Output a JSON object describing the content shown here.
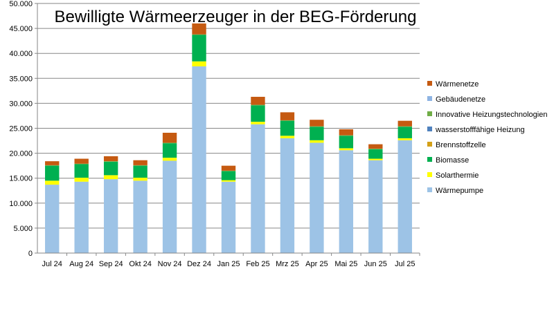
{
  "chart_data": {
    "type": "bar",
    "stacked": true,
    "title": "Bewilligte Wärmeerzeuger in der BEG-Förderung",
    "xlabel": "",
    "ylabel": "",
    "ylim": [
      0,
      50000
    ],
    "ytick_values": [
      0,
      5000,
      10000,
      15000,
      20000,
      25000,
      30000,
      35000,
      40000,
      45000,
      50000
    ],
    "ytick_labels": [
      "0",
      "5.000",
      "10.000",
      "15.000",
      "20.000",
      "25.000",
      "30.000",
      "35.000",
      "40.000",
      "45.000",
      "50.000"
    ],
    "grid": true,
    "legend_position": "right",
    "categories": [
      "Jul 24",
      "Aug 24",
      "Sep 24",
      "Okt 24",
      "Nov 24",
      "Dez 24",
      "Jan 25",
      "Feb 25",
      "Mrz 25",
      "Apr 25",
      "Mai 25",
      "Jun 25",
      "Jul 25"
    ],
    "series": [
      {
        "name": "Wärmepumpe",
        "color": "#9dc3e6",
        "values": [
          13700,
          14300,
          14800,
          14500,
          18500,
          37400,
          14300,
          25800,
          23000,
          22100,
          20600,
          18600,
          22600
        ]
      },
      {
        "name": "Solarthermie",
        "color": "#ffff00",
        "values": [
          800,
          800,
          800,
          600,
          600,
          1000,
          300,
          500,
          500,
          500,
          400,
          300,
          400
        ]
      },
      {
        "name": "Biomasse",
        "color": "#00b050",
        "values": [
          3000,
          2700,
          2700,
          2400,
          2900,
          5300,
          1800,
          3300,
          3000,
          2700,
          2500,
          1900,
          2300
        ]
      },
      {
        "name": "Brennstoffzelle",
        "color": "#d4a017",
        "values": [
          0,
          0,
          0,
          0,
          0,
          0,
          0,
          0,
          0,
          0,
          0,
          0,
          0
        ]
      },
      {
        "name": "wasserstofffähige Heizung",
        "color": "#4f81bd",
        "values": [
          0,
          0,
          0,
          0,
          0,
          0,
          0,
          0,
          0,
          0,
          0,
          0,
          0
        ]
      },
      {
        "name": "Innovative Heizungstechnologien",
        "color": "#70ad47",
        "values": [
          100,
          100,
          100,
          100,
          100,
          100,
          100,
          100,
          100,
          100,
          100,
          100,
          100
        ]
      },
      {
        "name": "Gebäudenetze",
        "color": "#8eb4e3",
        "values": [
          0,
          0,
          0,
          0,
          0,
          0,
          0,
          0,
          0,
          0,
          0,
          0,
          0
        ]
      },
      {
        "name": "Wärmenetze",
        "color": "#c55a11",
        "values": [
          800,
          1000,
          1000,
          1000,
          2000,
          2200,
          1000,
          1600,
          1600,
          1300,
          1200,
          900,
          1100
        ]
      }
    ]
  }
}
